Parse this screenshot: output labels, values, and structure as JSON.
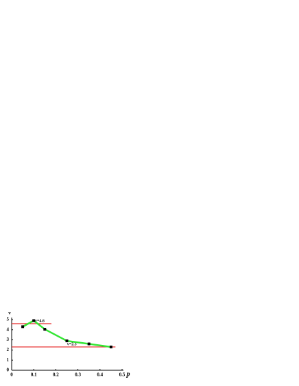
{
  "chart_data": {
    "type": "line",
    "x_label": "p",
    "y_label": "v",
    "x": [
      0.05,
      0.1,
      0.15,
      0.25,
      0.35,
      0.45
    ],
    "series": [
      {
        "color": "#33e633",
        "values": [
          4.3,
          4.9,
          4.05,
          2.9,
          2.6,
          2.3
        ]
      }
    ],
    "marker_color": "#000000",
    "hlines": [
      {
        "value": 4.6,
        "label": "v=4.6",
        "x_range": [
          0,
          0.18
        ],
        "color": "#e62020"
      },
      {
        "value": 2.3,
        "label": "v=2.3",
        "x_range": [
          0,
          0.47
        ],
        "color": "#e62020"
      }
    ],
    "xlim": [
      0,
      0.5
    ],
    "xticks": [
      0,
      0.1,
      0.2,
      0.3,
      0.4,
      0.5
    ],
    "ylim": [
      0,
      5
    ],
    "yticks": [
      0,
      1,
      2,
      3,
      4,
      5
    ]
  }
}
